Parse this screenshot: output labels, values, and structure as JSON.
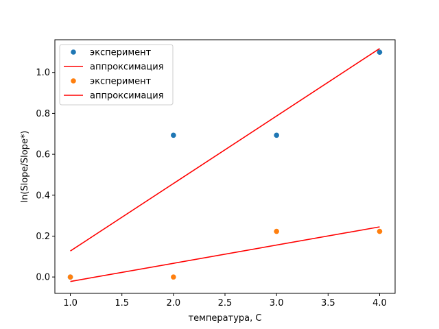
{
  "chart_data": {
    "type": "scatter",
    "title": "",
    "xlabel": "температура, C",
    "ylabel": "ln(Slope/Slope*)",
    "xlim": [
      0.85,
      4.15
    ],
    "ylim": [
      -0.08,
      1.16
    ],
    "xticks": [
      "1.0",
      "1.5",
      "2.0",
      "2.5",
      "3.0",
      "3.5",
      "4.0"
    ],
    "yticks": [
      "0.0",
      "0.2",
      "0.4",
      "0.6",
      "0.8",
      "1.0"
    ],
    "grid": false,
    "legend_position": "top-left",
    "series": [
      {
        "name": "эксперимент",
        "kind": "points",
        "color": "#1f77b4",
        "x": [
          1,
          2,
          3,
          4
        ],
        "y": [
          0.0,
          0.693,
          0.693,
          1.099
        ]
      },
      {
        "name": "аппроксимация",
        "kind": "line",
        "color": "#ff0000",
        "x": [
          1,
          4
        ],
        "y": [
          0.127,
          1.117
        ]
      },
      {
        "name": "эксперимент",
        "kind": "points",
        "color": "#ff7f0e",
        "x": [
          1,
          2,
          3,
          4
        ],
        "y": [
          0.0,
          0.0,
          0.223,
          0.223
        ]
      },
      {
        "name": "аппроксимация",
        "kind": "line",
        "color": "#ff0000",
        "x": [
          1,
          4
        ],
        "y": [
          -0.022,
          0.245
        ]
      }
    ]
  }
}
